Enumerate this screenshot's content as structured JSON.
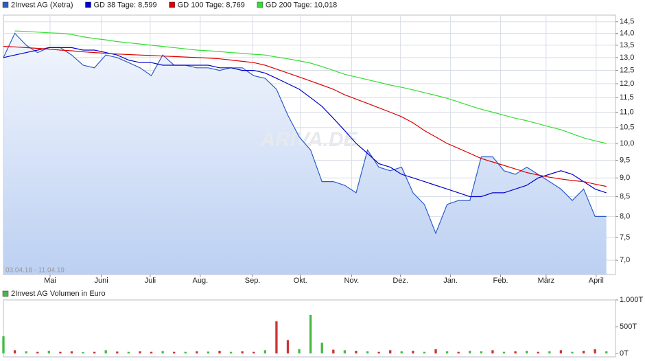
{
  "chart_data": [
    {
      "type": "line",
      "date_range": "03.04.18 - 11.04.19",
      "watermark": "ARIVA.DE",
      "log_scale": true,
      "grid": true,
      "x": [
        0,
        1,
        2,
        3,
        4,
        5,
        6,
        7,
        8,
        9,
        10,
        11,
        12,
        13,
        14,
        15,
        16,
        17,
        18,
        19,
        20,
        21,
        22,
        23,
        24,
        25,
        26,
        27,
        28,
        29,
        30,
        31,
        32,
        33,
        34,
        35,
        36,
        37,
        38,
        39,
        40,
        41,
        42,
        43,
        44,
        45,
        46,
        47,
        48,
        49,
        50,
        51,
        52,
        53
      ],
      "xlim": [
        0,
        53.8
      ],
      "xticks": [
        {
          "value": 4.1,
          "label": "Mai"
        },
        {
          "value": 8.6,
          "label": "Juni"
        },
        {
          "value": 12.9,
          "label": "Juli"
        },
        {
          "value": 17.3,
          "label": "Aug."
        },
        {
          "value": 21.9,
          "label": "Sep."
        },
        {
          "value": 26.1,
          "label": "Okt."
        },
        {
          "value": 30.6,
          "label": "Nov."
        },
        {
          "value": 34.9,
          "label": "Dez."
        },
        {
          "value": 39.3,
          "label": "Jan."
        },
        {
          "value": 43.7,
          "label": "Feb."
        },
        {
          "value": 47.7,
          "label": "März"
        },
        {
          "value": 52.1,
          "label": "April"
        }
      ],
      "ylim": [
        6.7,
        14.8
      ],
      "yticks": [
        {
          "value": 7,
          "label": "7,0"
        },
        {
          "value": 7.5,
          "label": "7,5"
        },
        {
          "value": 8,
          "label": "8,0"
        },
        {
          "value": 8.5,
          "label": "8,5"
        },
        {
          "value": 9,
          "label": "9,0"
        },
        {
          "value": 9.5,
          "label": "9,5"
        },
        {
          "value": 10,
          "label": "10,0"
        },
        {
          "value": 10.5,
          "label": "10,5"
        },
        {
          "value": 11,
          "label": "11,0"
        },
        {
          "value": 11.5,
          "label": "11,5"
        },
        {
          "value": 12,
          "label": "12,0"
        },
        {
          "value": 12.5,
          "label": "12,5"
        },
        {
          "value": 13,
          "label": "13,0"
        },
        {
          "value": 13.5,
          "label": "13,5"
        },
        {
          "value": 14,
          "label": "14,0"
        },
        {
          "value": 14.5,
          "label": "14,5"
        }
      ],
      "series": [
        {
          "name": "2Invest AG (Xetra)",
          "color": "#2a5cc8",
          "fill": true,
          "values": [
            13.0,
            14.0,
            13.5,
            13.2,
            13.4,
            13.4,
            13.1,
            12.7,
            12.6,
            13.1,
            13.0,
            12.8,
            12.6,
            12.3,
            13.1,
            12.7,
            12.7,
            12.6,
            12.6,
            12.5,
            12.6,
            12.6,
            12.3,
            12.2,
            11.8,
            10.9,
            10.2,
            9.8,
            8.9,
            8.9,
            8.8,
            8.6,
            9.8,
            9.3,
            9.2,
            9.3,
            8.6,
            8.3,
            7.6,
            8.3,
            8.4,
            8.4,
            9.6,
            9.6,
            9.2,
            9.1,
            9.3,
            9.1,
            8.9,
            8.7,
            8.4,
            8.7,
            8.0,
            8.0
          ]
        },
        {
          "name": "GD 38 Tage: 8,599",
          "color": "#0000cc",
          "values": [
            13.0,
            13.1,
            13.2,
            13.3,
            13.4,
            13.4,
            13.4,
            13.3,
            13.3,
            13.2,
            13.1,
            12.9,
            12.8,
            12.8,
            12.7,
            12.7,
            12.7,
            12.7,
            12.7,
            12.6,
            12.6,
            12.5,
            12.5,
            12.4,
            12.2,
            12.0,
            11.8,
            11.5,
            11.2,
            10.8,
            10.4,
            10.0,
            9.7,
            9.4,
            9.3,
            9.1,
            9.0,
            8.9,
            8.8,
            8.7,
            8.6,
            8.5,
            8.5,
            8.6,
            8.6,
            8.7,
            8.8,
            9.0,
            9.1,
            9.2,
            9.1,
            8.9,
            8.7,
            8.6
          ]
        },
        {
          "name": "GD 100 Tage: 8,769",
          "color": "#dd0000",
          "values": [
            13.45,
            13.43,
            13.4,
            13.37,
            13.34,
            13.3,
            13.27,
            13.23,
            13.2,
            13.17,
            13.14,
            13.12,
            13.1,
            13.08,
            13.06,
            13.04,
            13.02,
            13.0,
            12.98,
            12.95,
            12.9,
            12.85,
            12.8,
            12.7,
            12.55,
            12.4,
            12.25,
            12.1,
            11.95,
            11.8,
            11.6,
            11.45,
            11.3,
            11.15,
            11.0,
            10.85,
            10.65,
            10.4,
            10.2,
            10.0,
            9.85,
            9.7,
            9.55,
            9.45,
            9.35,
            9.25,
            9.15,
            9.08,
            9.02,
            8.97,
            8.93,
            8.9,
            8.83,
            8.77
          ]
        },
        {
          "name": "GD 200 Tage: 10,018",
          "color": "#33dd33",
          "values": [
            null,
            14.1,
            14.08,
            14.05,
            14.02,
            14.0,
            13.95,
            13.85,
            13.78,
            13.72,
            13.65,
            13.6,
            13.55,
            13.5,
            13.45,
            13.4,
            13.35,
            13.3,
            13.27,
            13.24,
            13.2,
            13.17,
            13.13,
            13.1,
            13.02,
            12.95,
            12.87,
            12.78,
            12.65,
            12.5,
            12.35,
            12.25,
            12.15,
            12.05,
            11.95,
            11.87,
            11.78,
            11.68,
            11.58,
            11.48,
            11.35,
            11.22,
            11.1,
            11.0,
            10.9,
            10.8,
            10.72,
            10.62,
            10.52,
            10.43,
            10.3,
            10.17,
            10.08,
            10.0
          ]
        }
      ]
    },
    {
      "type": "bar",
      "title": "2Invest AG Volumen in Euro",
      "legend_color": "#44bb44",
      "x": [
        0,
        1,
        2,
        3,
        4,
        5,
        6,
        7,
        8,
        9,
        10,
        11,
        12,
        13,
        14,
        15,
        16,
        17,
        18,
        19,
        20,
        21,
        22,
        23,
        24,
        25,
        26,
        27,
        28,
        29,
        30,
        31,
        32,
        33,
        34,
        35,
        36,
        37,
        38,
        39,
        40,
        41,
        42,
        43,
        44,
        45,
        46,
        47,
        48,
        49,
        50,
        51,
        52,
        53
      ],
      "xlim": [
        0,
        53.8
      ],
      "ylim": [
        0,
        1000
      ],
      "yticks": [
        {
          "value": 0,
          "label": "0T"
        },
        {
          "value": 500,
          "label": "500T"
        },
        {
          "value": 1000,
          "label": "1.000T"
        }
      ],
      "values": [
        320,
        60,
        40,
        30,
        50,
        30,
        40,
        25,
        30,
        60,
        35,
        30,
        40,
        30,
        45,
        30,
        30,
        40,
        35,
        50,
        30,
        40,
        30,
        60,
        600,
        250,
        80,
        720,
        200,
        70,
        60,
        50,
        40,
        30,
        60,
        40,
        50,
        30,
        80,
        40,
        30,
        50,
        40,
        60,
        30,
        40,
        50,
        30,
        40,
        60,
        30,
        50,
        80,
        40
      ],
      "colors": [
        "#44bb44",
        "#cc3333",
        "#44bb44",
        "#cc3333",
        "#44bb44",
        "#cc3333",
        "#cc3333",
        "#44bb44",
        "#cc3333",
        "#44bb44",
        "#cc3333",
        "#44bb44",
        "#cc3333",
        "#cc3333",
        "#44bb44",
        "#cc3333",
        "#44bb44",
        "#cc3333",
        "#44bb44",
        "#cc3333",
        "#44bb44",
        "#cc3333",
        "#cc3333",
        "#44bb44",
        "#cc3333",
        "#cc3333",
        "#44bb44",
        "#44bb44",
        "#44bb44",
        "#cc3333",
        "#44bb44",
        "#cc3333",
        "#44bb44",
        "#cc3333",
        "#cc3333",
        "#44bb44",
        "#cc3333",
        "#44bb44",
        "#cc3333",
        "#44bb44",
        "#cc3333",
        "#44bb44",
        "#44bb44",
        "#cc3333",
        "#44bb44",
        "#cc3333",
        "#44bb44",
        "#cc3333",
        "#44bb44",
        "#cc3333",
        "#44bb44",
        "#cc3333",
        "#cc3333",
        "#44bb44"
      ]
    }
  ]
}
